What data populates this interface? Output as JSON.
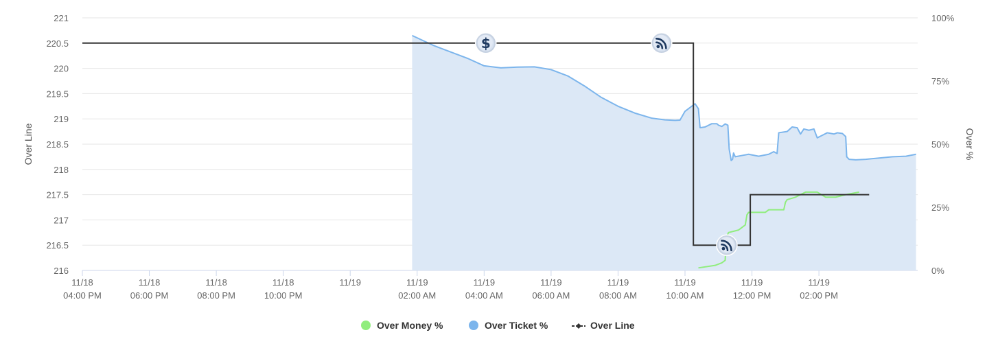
{
  "chart_data": {
    "type": "line",
    "title": "",
    "left_axis": {
      "label": "Over Line",
      "range": [
        216,
        221
      ],
      "ticks": [
        "216",
        "216.5",
        "217",
        "217.5",
        "218",
        "218.5",
        "219",
        "219.5",
        "220",
        "220.5",
        "221"
      ]
    },
    "right_axis": {
      "label": "Over %",
      "range": [
        0,
        100
      ],
      "ticks": [
        "0%",
        "25%",
        "50%",
        "75%",
        "100%"
      ]
    },
    "x_axis": {
      "range_hours": [
        16,
        39.5
      ],
      "ticks": [
        {
          "t": 16,
          "date": "11/18",
          "time": "04:00 PM"
        },
        {
          "t": 18,
          "date": "11/18",
          "time": "06:00 PM"
        },
        {
          "t": 20,
          "date": "11/18",
          "time": "08:00 PM"
        },
        {
          "t": 22,
          "date": "11/18",
          "time": "10:00 PM"
        },
        {
          "t": 24,
          "date": "11/19",
          "time": ""
        },
        {
          "t": 26,
          "date": "11/19",
          "time": "02:00 AM"
        },
        {
          "t": 28,
          "date": "11/19",
          "time": "04:00 AM"
        },
        {
          "t": 30,
          "date": "11/19",
          "time": "06:00 AM"
        },
        {
          "t": 32,
          "date": "11/19",
          "time": "08:00 AM"
        },
        {
          "t": 34,
          "date": "11/19",
          "time": "10:00 AM"
        },
        {
          "t": 36,
          "date": "11/19",
          "time": "12:00 PM"
        },
        {
          "t": 38,
          "date": "11/19",
          "time": "02:00 PM"
        }
      ]
    },
    "grid": true,
    "legend_position": "bottom-center",
    "series": [
      {
        "name": "Over Money %",
        "color": "#90ed7d",
        "fill": "#c9ead8",
        "axis": "right",
        "type": "area",
        "points": [
          [
            34.4,
            1
          ],
          [
            34.9,
            2
          ],
          [
            35.1,
            3
          ],
          [
            35.2,
            4
          ],
          [
            35.23,
            13
          ],
          [
            35.3,
            15
          ],
          [
            35.6,
            16
          ],
          [
            35.7,
            17
          ],
          [
            35.8,
            18
          ],
          [
            35.85,
            22
          ],
          [
            35.9,
            23
          ],
          [
            36.4,
            23
          ],
          [
            36.5,
            24
          ],
          [
            36.95,
            24
          ],
          [
            37.0,
            27
          ],
          [
            37.05,
            28
          ],
          [
            37.3,
            29
          ],
          [
            37.6,
            31
          ],
          [
            37.95,
            31
          ],
          [
            38.2,
            29
          ],
          [
            38.5,
            29
          ],
          [
            38.8,
            30
          ],
          [
            39.2,
            31
          ]
        ]
      },
      {
        "name": "Over Ticket %",
        "color": "#7cb5ec",
        "fill": "#dce8f6",
        "axis": "right",
        "type": "area",
        "points": [
          [
            25.85,
            93
          ],
          [
            26.5,
            89
          ],
          [
            27.5,
            84
          ],
          [
            28.0,
            81
          ],
          [
            28.5,
            80.2
          ],
          [
            29.0,
            80.5
          ],
          [
            29.5,
            80.6
          ],
          [
            30.0,
            79.5
          ],
          [
            30.5,
            77
          ],
          [
            31.0,
            73
          ],
          [
            31.5,
            68.5
          ],
          [
            32.0,
            65
          ],
          [
            32.5,
            62.3
          ],
          [
            33.0,
            60.3
          ],
          [
            33.4,
            59.6
          ],
          [
            33.7,
            59.4
          ],
          [
            33.85,
            59.5
          ],
          [
            34.0,
            63
          ],
          [
            34.3,
            66
          ],
          [
            34.4,
            64
          ],
          [
            34.45,
            56.5
          ],
          [
            34.6,
            56.8
          ],
          [
            34.8,
            58.1
          ],
          [
            34.95,
            58.1
          ],
          [
            35.0,
            57.5
          ],
          [
            35.1,
            57
          ],
          [
            35.2,
            58
          ],
          [
            35.28,
            57.5
          ],
          [
            35.32,
            48
          ],
          [
            35.38,
            43.5
          ],
          [
            35.42,
            44
          ],
          [
            35.45,
            46.5
          ],
          [
            35.5,
            45
          ],
          [
            35.7,
            45.5
          ],
          [
            35.9,
            46
          ],
          [
            36.2,
            45.2
          ],
          [
            36.5,
            46
          ],
          [
            36.65,
            47
          ],
          [
            36.75,
            46.3
          ],
          [
            36.8,
            54.5
          ],
          [
            37.05,
            55
          ],
          [
            37.2,
            56.8
          ],
          [
            37.35,
            56.5
          ],
          [
            37.45,
            54
          ],
          [
            37.55,
            56
          ],
          [
            37.7,
            55.5
          ],
          [
            37.85,
            56
          ],
          [
            37.95,
            52.5
          ],
          [
            38.1,
            53.5
          ],
          [
            38.25,
            54.5
          ],
          [
            38.45,
            54
          ],
          [
            38.55,
            54.5
          ],
          [
            38.7,
            54.2
          ],
          [
            38.8,
            53
          ],
          [
            38.83,
            45
          ],
          [
            38.9,
            44
          ],
          [
            39.1,
            43.8
          ],
          [
            39.4,
            44
          ],
          [
            39.8,
            44.5
          ],
          [
            40.2,
            45
          ],
          [
            40.6,
            45.2
          ],
          [
            40.9,
            46
          ]
        ]
      },
      {
        "name": "Over Line",
        "color": "#333333",
        "axis": "left",
        "type": "step",
        "points": [
          [
            16,
            220.5
          ],
          [
            34.25,
            220.5
          ],
          [
            34.25,
            216.5
          ],
          [
            35.95,
            216.5
          ],
          [
            35.95,
            217.5
          ],
          [
            39.5,
            217.5
          ]
        ]
      }
    ],
    "markers": [
      {
        "t": 28.05,
        "value": 220.5,
        "icon": "dollar-icon"
      },
      {
        "t": 33.3,
        "value": 220.5,
        "icon": "rss-icon"
      },
      {
        "t": 35.25,
        "value": 216.5,
        "icon": "rss-icon"
      }
    ]
  },
  "legend": [
    {
      "label": "Over Money %",
      "color": "#90ed7d",
      "kind": "dot"
    },
    {
      "label": "Over Ticket %",
      "color": "#7cb5ec",
      "kind": "dot"
    },
    {
      "label": "Over Line",
      "color": "#333333",
      "kind": "line"
    }
  ]
}
